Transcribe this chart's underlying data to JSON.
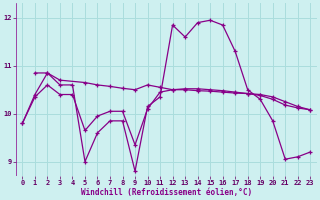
{
  "xlabel": "Windchill (Refroidissement éolien,°C)",
  "bg_color": "#cef0f0",
  "grid_color": "#aadddd",
  "line_color": "#880088",
  "xlim": [
    -0.5,
    23.5
  ],
  "ylim": [
    8.7,
    12.3
  ],
  "yticks": [
    9,
    10,
    11,
    12
  ],
  "xticks": [
    0,
    1,
    2,
    3,
    4,
    5,
    6,
    7,
    8,
    9,
    10,
    11,
    12,
    13,
    14,
    15,
    16,
    17,
    18,
    19,
    20,
    21,
    22,
    23
  ],
  "curve1_x": [
    0,
    1,
    2,
    3,
    4,
    5,
    6,
    7,
    8,
    9,
    10,
    11,
    12,
    13,
    14,
    15,
    16,
    17,
    18,
    19,
    20,
    21,
    22,
    23
  ],
  "curve1_y": [
    9.8,
    10.4,
    10.85,
    10.6,
    10.6,
    9.0,
    9.6,
    9.85,
    9.85,
    8.8,
    10.15,
    10.35,
    11.85,
    11.6,
    11.9,
    11.95,
    11.85,
    11.3,
    10.5,
    10.3,
    9.85,
    9.05,
    9.1,
    9.2
  ],
  "curve2_x": [
    1,
    2,
    3,
    5,
    6,
    7,
    8,
    9,
    10,
    11,
    12,
    13,
    14,
    15,
    16,
    17,
    18,
    19,
    20,
    21,
    22,
    23
  ],
  "curve2_y": [
    10.85,
    10.85,
    10.7,
    10.65,
    10.6,
    10.57,
    10.53,
    10.5,
    10.6,
    10.55,
    10.5,
    10.5,
    10.48,
    10.47,
    10.45,
    10.43,
    10.42,
    10.4,
    10.35,
    10.25,
    10.15,
    10.08
  ],
  "curve3_x": [
    0,
    1,
    2,
    3,
    4,
    5,
    6,
    7,
    8,
    9,
    10,
    11,
    12,
    13,
    14,
    15,
    16,
    17,
    18,
    19,
    20,
    21,
    22,
    23
  ],
  "curve3_y": [
    9.8,
    10.35,
    10.6,
    10.4,
    10.4,
    9.65,
    9.95,
    10.05,
    10.05,
    9.35,
    10.1,
    10.45,
    10.5,
    10.52,
    10.52,
    10.5,
    10.48,
    10.45,
    10.42,
    10.38,
    10.3,
    10.18,
    10.12,
    10.08
  ]
}
